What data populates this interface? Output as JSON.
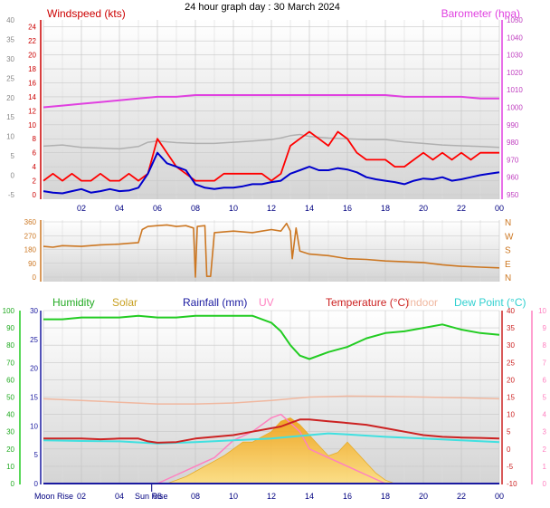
{
  "title": "24 hour graph day : 30 March 2024",
  "x_ticks": [
    "02",
    "04",
    "06",
    "08",
    "10",
    "12",
    "14",
    "16",
    "18",
    "20",
    "22",
    "00"
  ],
  "markers": {
    "moon_rise": "Moon Rise",
    "sun_rise": "Sun Rise"
  },
  "colors": {
    "windspeed": "#ff0000",
    "gust_avg": "#0000cc",
    "barometer": "#e040e0",
    "temp_gray": "#b0b0b0",
    "wind_dir": "#cc7722",
    "humidity": "#22cc22",
    "solar": "#f5b820",
    "rainfall": "#1a1aa0",
    "uv": "#ff80c0",
    "temperature": "#cc2222",
    "indoor": "#f0b8a0",
    "dew_point": "#40e0e0"
  },
  "chart_data": [
    {
      "type": "line",
      "legend": [
        "Windspeed (kts)",
        "Barometer (hpa)"
      ],
      "left_axis": {
        "ticks": [
          0,
          2,
          4,
          6,
          8,
          10,
          12,
          14,
          16,
          18,
          20,
          22,
          24
        ]
      },
      "right_axis": {
        "ticks": [
          950,
          960,
          970,
          980,
          990,
          1000,
          1010,
          1020,
          1030,
          1040,
          1050
        ]
      },
      "outer_left_axis": {
        "ticks": [
          -5,
          0,
          5,
          10,
          15,
          20,
          25,
          30,
          35,
          40
        ]
      },
      "xlim": [
        0,
        24
      ],
      "series": [
        {
          "key": "barometer",
          "axis": "right",
          "x": [
            0,
            1,
            2,
            3,
            4,
            5,
            6,
            7,
            8,
            9,
            10,
            11,
            12,
            13,
            14,
            15,
            16,
            17,
            18,
            19,
            20,
            21,
            22,
            23,
            24
          ],
          "values": [
            1000,
            1001,
            1002,
            1003,
            1004,
            1005,
            1006,
            1006,
            1007,
            1007,
            1007,
            1007,
            1007,
            1007,
            1007,
            1007,
            1007,
            1007,
            1007,
            1006,
            1006,
            1006,
            1006,
            1005,
            1005
          ]
        },
        {
          "key": "temp_gray",
          "axis": "outer",
          "x": [
            0,
            1,
            2,
            3,
            4,
            5,
            5.5,
            6,
            7,
            8,
            9,
            10,
            11,
            12,
            12.5,
            13,
            13.5,
            14,
            15,
            16,
            17,
            18,
            19,
            20,
            21,
            22,
            23,
            24
          ],
          "values": [
            7.5,
            7.8,
            7.2,
            7,
            6.8,
            7.4,
            8.5,
            8.8,
            8.4,
            8.2,
            8.2,
            8.5,
            8.8,
            9.2,
            9.6,
            10.2,
            10.5,
            10,
            9.6,
            9.4,
            9.2,
            9.2,
            8.6,
            8.2,
            7.8,
            7.6,
            7.4,
            7.2
          ]
        },
        {
          "key": "windspeed",
          "axis": "left",
          "x": [
            0,
            0.5,
            1,
            1.5,
            2,
            2.5,
            3,
            3.5,
            4,
            4.5,
            5,
            5.5,
            6,
            6.5,
            7,
            7.5,
            8,
            8.5,
            9,
            9.5,
            10,
            10.5,
            11,
            11.5,
            12,
            12.5,
            13,
            13.5,
            14,
            14.5,
            15,
            15.5,
            16,
            16.5,
            17,
            17.5,
            18,
            18.5,
            19,
            19.5,
            20,
            20.5,
            21,
            21.5,
            22,
            22.5,
            23,
            23.5,
            24
          ],
          "values": [
            2,
            3,
            2,
            3,
            2,
            2,
            3,
            2,
            2,
            3,
            2,
            3,
            8,
            6,
            4,
            3,
            2,
            2,
            2,
            3,
            3,
            3,
            3,
            3,
            2,
            3,
            7,
            8,
            9,
            8,
            7,
            9,
            8,
            6,
            5,
            5,
            5,
            4,
            4,
            5,
            6,
            5,
            6,
            5,
            6,
            5,
            6,
            6,
            6
          ]
        },
        {
          "key": "gust_avg",
          "axis": "left",
          "x": [
            0,
            0.5,
            1,
            1.5,
            2,
            2.5,
            3,
            3.5,
            4,
            4.5,
            5,
            5.5,
            6,
            6.5,
            7,
            7.5,
            8,
            8.5,
            9,
            9.5,
            10,
            10.5,
            11,
            11.5,
            12,
            12.5,
            13,
            13.5,
            14,
            14.5,
            15,
            15.5,
            16,
            16.5,
            17,
            17.5,
            18,
            18.5,
            19,
            19.5,
            20,
            20.5,
            21,
            21.5,
            22,
            22.5,
            23,
            23.5,
            24
          ],
          "values": [
            0.5,
            0.3,
            0.2,
            0.5,
            0.8,
            0.3,
            0.5,
            0.8,
            0.5,
            0.6,
            1,
            3,
            6,
            4.5,
            4,
            3.5,
            1.5,
            1,
            0.8,
            1,
            1,
            1.2,
            1.5,
            1.5,
            1.8,
            2,
            3,
            3.5,
            4,
            3.5,
            3.5,
            3.8,
            3.6,
            3.2,
            2.5,
            2.2,
            2,
            1.8,
            1.5,
            2,
            2.3,
            2.2,
            2.5,
            2,
            2.2,
            2.5,
            2.8,
            3,
            3.2
          ]
        }
      ]
    },
    {
      "type": "line",
      "left_axis": {
        "ticks": [
          0,
          90,
          180,
          270,
          360
        ]
      },
      "right_axis": {
        "labels": [
          "N",
          "W",
          "S",
          "E",
          "N"
        ]
      },
      "xlim": [
        0,
        24
      ],
      "series": [
        {
          "key": "wind_dir",
          "x": [
            0,
            0.5,
            1,
            2,
            3,
            4,
            4.5,
            5,
            5.2,
            5.5,
            6,
            6.5,
            7,
            7.5,
            7.9,
            8,
            8.1,
            8.5,
            8.6,
            8.8,
            9,
            10,
            11,
            11.5,
            12,
            12.5,
            12.8,
            13,
            13.1,
            13.3,
            13.5,
            14,
            15,
            16,
            17,
            18,
            19,
            20,
            21,
            22,
            23,
            24
          ],
          "values": [
            200,
            195,
            205,
            200,
            210,
            215,
            220,
            225,
            310,
            330,
            335,
            340,
            330,
            335,
            320,
            0,
            330,
            335,
            5,
            5,
            290,
            300,
            290,
            300,
            310,
            300,
            350,
            300,
            120,
            320,
            170,
            150,
            140,
            120,
            115,
            105,
            100,
            95,
            80,
            70,
            65,
            60
          ]
        }
      ]
    },
    {
      "type": "area",
      "legend": [
        "Humidity",
        "Solar",
        "Rainfall (mm)",
        "UV",
        "Temperature (°C)",
        "Indoor",
        "Dew Point (°C)"
      ],
      "axes": {
        "humidity": {
          "ticks": [
            0,
            10,
            20,
            30,
            40,
            50,
            60,
            70,
            80,
            90,
            100
          ]
        },
        "rainfall": {
          "ticks": [
            0,
            5,
            10,
            15,
            20,
            25,
            30
          ]
        },
        "temperature": {
          "ticks": [
            -10,
            -5,
            0,
            5,
            10,
            15,
            20,
            25,
            30,
            35,
            40
          ]
        },
        "uv": {
          "ticks": [
            0,
            1,
            2,
            3,
            4,
            5,
            6,
            7,
            8,
            9,
            10
          ]
        }
      },
      "xlim": [
        0,
        24
      ],
      "series": [
        {
          "key": "humidity",
          "axis": "humidity",
          "x": [
            0,
            1,
            2,
            3,
            4,
            5,
            6,
            7,
            8,
            9,
            10,
            11,
            12,
            12.5,
            13,
            13.5,
            14,
            15,
            16,
            17,
            18,
            19,
            20,
            21,
            22,
            23,
            24
          ],
          "values": [
            95,
            95,
            96,
            96,
            96,
            97,
            96,
            96,
            97,
            97,
            97,
            97,
            93,
            88,
            80,
            74,
            72,
            76,
            79,
            84,
            87,
            88,
            90,
            92,
            89,
            87,
            86
          ]
        },
        {
          "key": "solar",
          "axis": "humidity",
          "x": [
            0,
            6,
            6.5,
            7,
            7.5,
            8,
            8.5,
            9,
            9.5,
            10,
            10.5,
            11,
            11.5,
            12,
            12.5,
            13,
            13.5,
            14,
            14.5,
            15,
            15.5,
            16,
            16.5,
            17,
            17.5,
            18,
            18.5,
            24
          ],
          "values": [
            0,
            0,
            0,
            2,
            4,
            7,
            10,
            13,
            16,
            20,
            24,
            24,
            27,
            30,
            36,
            38,
            34,
            28,
            22,
            16,
            18,
            24,
            18,
            12,
            6,
            2,
            0,
            0
          ]
        },
        {
          "key": "uv",
          "axis": "uv",
          "x": [
            0,
            6,
            7,
            8,
            9,
            10,
            11,
            12,
            12.5,
            13,
            13.5,
            14,
            15,
            16,
            17,
            18,
            24
          ],
          "values": [
            0,
            0,
            0.5,
            1,
            1.5,
            2.5,
            3,
            3.8,
            4,
            3.5,
            3,
            2,
            1.5,
            1,
            0.5,
            0,
            0
          ]
        },
        {
          "key": "temperature",
          "axis": "temperature",
          "x": [
            0,
            1,
            2,
            3,
            4,
            5,
            5.5,
            6,
            7,
            8,
            9,
            10,
            11,
            12,
            12.5,
            13,
            13.5,
            14,
            15,
            16,
            17,
            18,
            19,
            20,
            21,
            22,
            23,
            24
          ],
          "values": [
            3,
            3,
            3,
            2.8,
            3,
            3,
            2.2,
            1.8,
            2,
            3,
            3.5,
            4,
            5,
            6,
            6.5,
            7.5,
            8.5,
            8.5,
            8,
            7.5,
            7,
            6,
            5,
            4,
            3.5,
            3.3,
            3.2,
            3
          ]
        },
        {
          "key": "indoor",
          "axis": "temperature",
          "x": [
            0,
            2,
            4,
            6,
            8,
            10,
            12,
            14,
            16,
            18,
            20,
            22,
            24
          ],
          "values": [
            14.5,
            14,
            13.5,
            13,
            13,
            13.3,
            14,
            15,
            15.3,
            15.2,
            15,
            14.8,
            14.5
          ]
        },
        {
          "key": "dew_point",
          "axis": "temperature",
          "x": [
            0,
            2,
            4,
            6,
            8,
            10,
            12,
            13,
            14,
            15,
            16,
            18,
            20,
            22,
            24
          ],
          "values": [
            2.5,
            2.3,
            2.2,
            1.6,
            2,
            2.5,
            3,
            3.5,
            4,
            4.5,
            4.2,
            3.5,
            3,
            2.5,
            2
          ]
        },
        {
          "key": "rainfall",
          "axis": "rainfall",
          "x": [
            0,
            24
          ],
          "values": [
            0,
            0
          ]
        }
      ]
    }
  ]
}
